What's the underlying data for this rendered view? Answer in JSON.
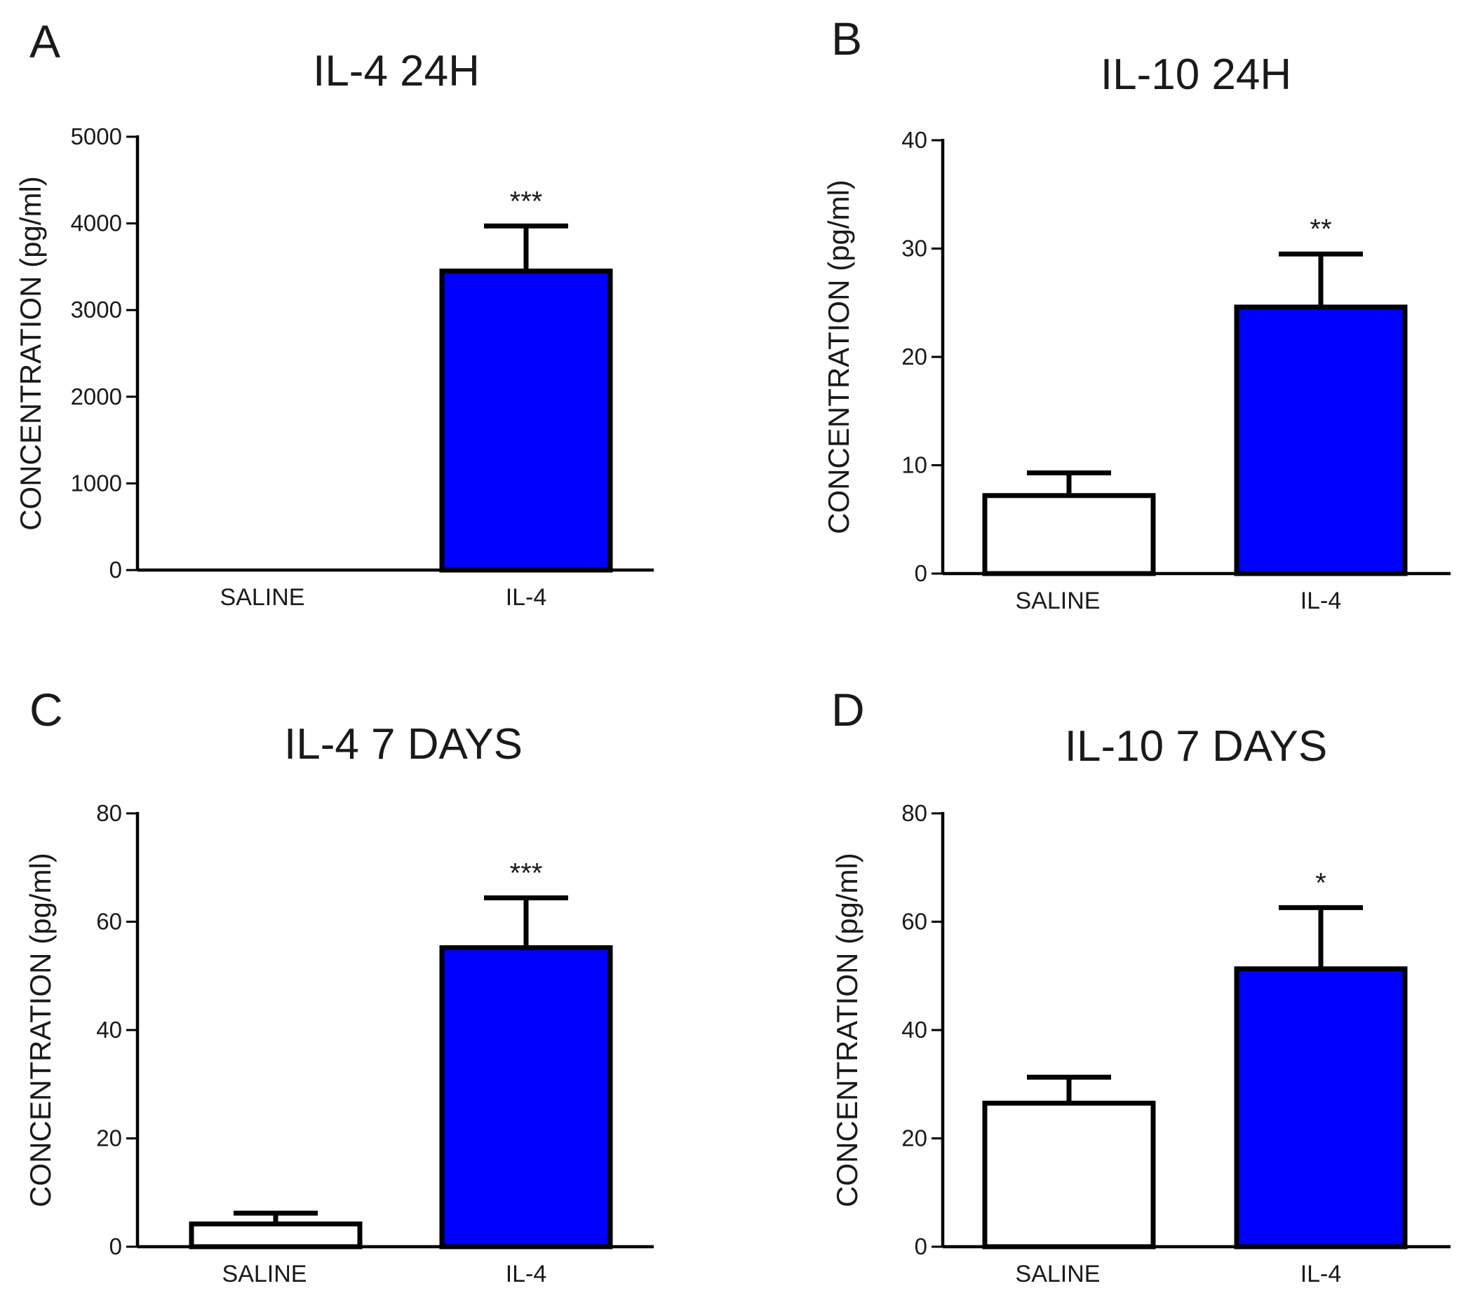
{
  "colors": {
    "il4_bar": "#0000ff",
    "saline_bar": "#ffffff",
    "axis": "#000000"
  },
  "chart_data": [
    {
      "panel": "A",
      "type": "bar",
      "title": "IL-4 24H",
      "ylabel": "CONCENTRATION (pg/ml)",
      "xlabel": "",
      "categories": [
        "SALINE",
        "IL-4"
      ],
      "values": [
        0,
        3450
      ],
      "errors": [
        0,
        520
      ],
      "significance": [
        "",
        "***"
      ],
      "ylim": [
        0,
        5000
      ],
      "yticks": [
        0,
        1000,
        2000,
        3000,
        4000,
        5000
      ],
      "ytick_labels": [
        "0",
        "1000",
        "2000",
        "3000",
        "4000",
        "5000"
      ]
    },
    {
      "panel": "B",
      "type": "bar",
      "title": "IL-10 24H",
      "ylabel": "CONCENTRATION (pg/ml)",
      "xlabel": "",
      "categories": [
        "SALINE",
        "IL-4"
      ],
      "values": [
        7.2,
        24.6
      ],
      "errors": [
        2.1,
        4.9
      ],
      "significance": [
        "",
        "**"
      ],
      "ylim": [
        0,
        40
      ],
      "yticks": [
        0,
        10,
        20,
        30,
        40
      ],
      "ytick_labels": [
        "0",
        "10",
        "20",
        "30",
        "40"
      ]
    },
    {
      "panel": "C",
      "type": "bar",
      "title": "IL-4 7 DAYS",
      "ylabel": "CONCENTRATION (pg/ml)",
      "xlabel": "",
      "categories": [
        "SALINE",
        "IL-4"
      ],
      "values": [
        4.2,
        55.2
      ],
      "errors": [
        2.0,
        9.2
      ],
      "significance": [
        "",
        "***"
      ],
      "ylim": [
        0,
        80
      ],
      "yticks": [
        0,
        20,
        40,
        60,
        80
      ],
      "ytick_labels": [
        "0",
        "20",
        "40",
        "60",
        "80"
      ]
    },
    {
      "panel": "D",
      "type": "bar",
      "title": "IL-10 7 DAYS",
      "ylabel": "CONCENTRATION (pg/ml)",
      "xlabel": "",
      "categories": [
        "SALINE",
        "IL-4"
      ],
      "values": [
        26.5,
        51.3
      ],
      "errors": [
        4.8,
        11.3
      ],
      "significance": [
        "",
        "*"
      ],
      "ylim": [
        0,
        80
      ],
      "yticks": [
        0,
        20,
        40,
        60,
        80
      ],
      "ytick_labels": [
        "0",
        "20",
        "40",
        "60",
        "80"
      ]
    }
  ]
}
